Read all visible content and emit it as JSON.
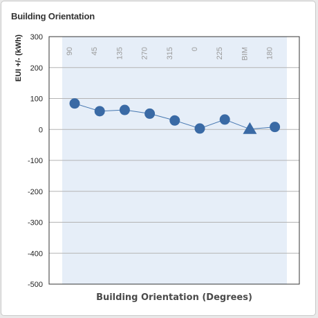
{
  "panel": {
    "title": "Building Orientation"
  },
  "chart_data": {
    "type": "line",
    "title": "",
    "xlabel": "Building Orientation (Degrees)",
    "ylabel": "EUI +/- (kWh)",
    "categories": [
      "90",
      "45",
      "135",
      "270",
      "315",
      "0",
      "225",
      "BIM",
      "180"
    ],
    "series": [
      {
        "values": [
          84,
          59,
          63,
          51,
          29,
          3,
          32,
          1,
          8
        ],
        "markers": [
          "circle",
          "circle",
          "circle",
          "circle",
          "circle",
          "circle",
          "circle",
          "triangle",
          "circle"
        ]
      }
    ],
    "ylim": [
      -500,
      300
    ],
    "yticks": [
      300,
      200,
      100,
      0,
      -100,
      -200,
      -300,
      -400,
      -500
    ],
    "grid": true,
    "legend": "none",
    "colors": {
      "series": "#3a6aa5",
      "line": "#4677b0",
      "band": "#e6eef8",
      "grid": "#b3b3b3",
      "axis": "#333333"
    }
  }
}
